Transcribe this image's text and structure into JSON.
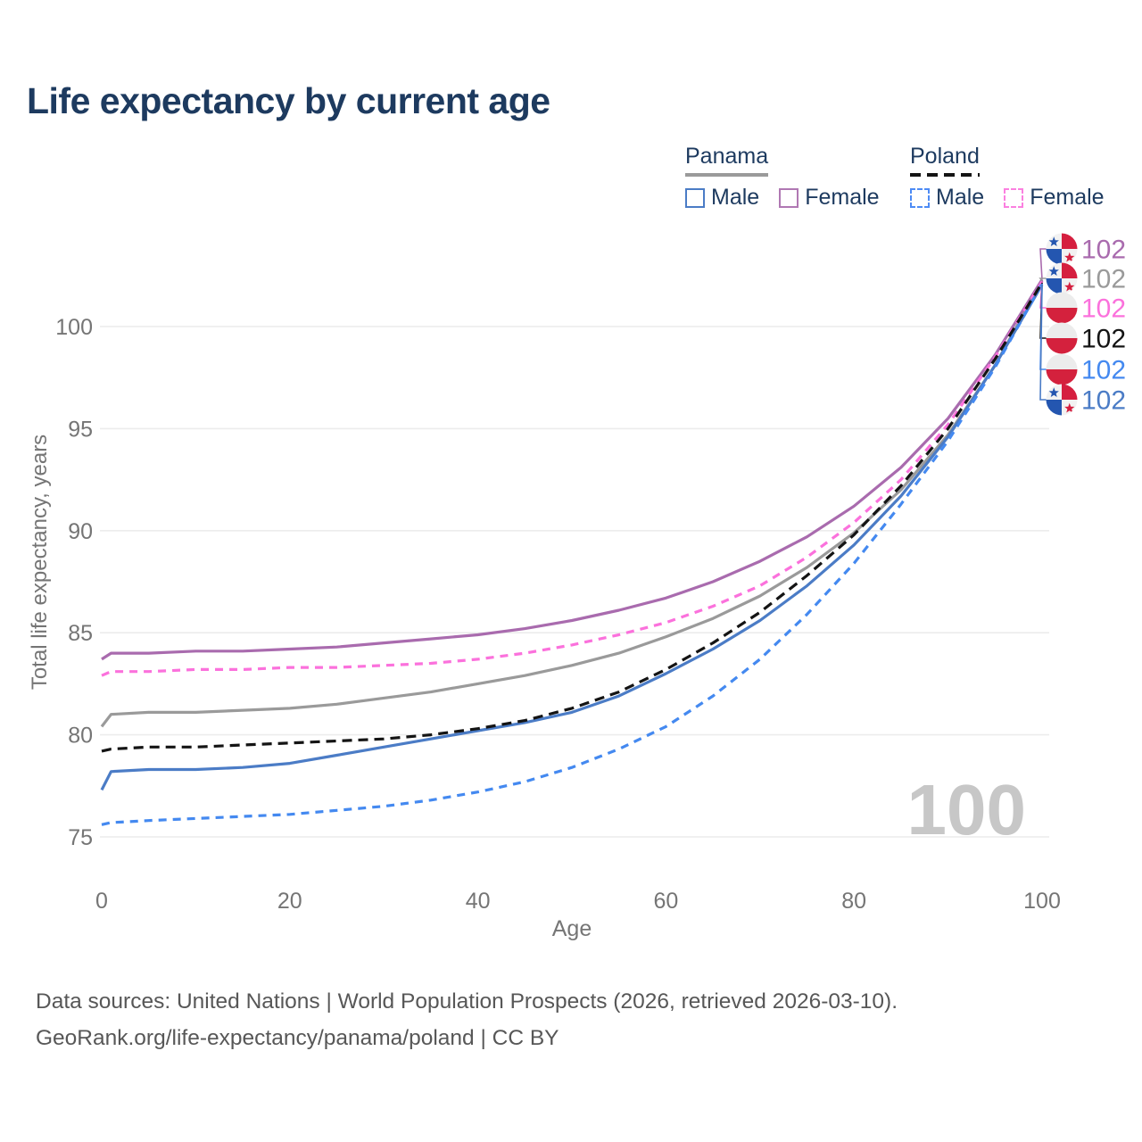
{
  "page": {
    "title": "Life expectancy by current age"
  },
  "legend": {
    "groups": [
      {
        "label": "Panama",
        "line_style": "solid",
        "line_color": "#9a9a9a",
        "items": [
          {
            "label": "Male",
            "style": "solid",
            "color": "#4b7cc6"
          },
          {
            "label": "Female",
            "style": "solid",
            "color": "#b078b3"
          }
        ]
      },
      {
        "label": "Poland",
        "line_style": "dashed",
        "line_color": "#141414",
        "items": [
          {
            "label": "Male",
            "style": "dashed",
            "color": "#4d8bf5"
          },
          {
            "label": "Female",
            "style": "dashed",
            "color": "#fb80e0"
          }
        ]
      }
    ]
  },
  "chart_data": {
    "type": "line",
    "title": "Life expectancy by current age",
    "xlabel": "Age",
    "ylabel": "Total life expectancy, years",
    "x_ticks": [
      0,
      20,
      40,
      60,
      80,
      100
    ],
    "y_ticks": [
      75,
      80,
      85,
      90,
      95,
      100
    ],
    "xlim": [
      0,
      100
    ],
    "ylim": [
      74.5,
      103
    ],
    "grid": "horizontal",
    "legend_position": "top-right",
    "watermark": "100",
    "x": [
      0,
      1,
      5,
      10,
      15,
      20,
      25,
      30,
      35,
      40,
      45,
      50,
      55,
      60,
      65,
      70,
      75,
      80,
      85,
      90,
      95,
      100
    ],
    "series": [
      {
        "name": "Panama Female",
        "country": "panama",
        "sex": "female",
        "color": "#a96bae",
        "dash": "solid",
        "end_label": "102",
        "values": [
          83.7,
          84.0,
          84.0,
          84.1,
          84.1,
          84.2,
          84.3,
          84.5,
          84.7,
          84.9,
          85.2,
          85.6,
          86.1,
          86.7,
          87.5,
          88.5,
          89.7,
          91.2,
          93.1,
          95.5,
          98.6,
          102.3
        ]
      },
      {
        "name": "Panama (both sexes)",
        "country": "panama",
        "sex": "both",
        "color": "#9a9a9a",
        "dash": "solid",
        "end_label": "102",
        "values": [
          80.4,
          81.0,
          81.1,
          81.1,
          81.2,
          81.3,
          81.5,
          81.8,
          82.1,
          82.5,
          82.9,
          83.4,
          84.0,
          84.8,
          85.7,
          86.8,
          88.2,
          89.9,
          92.0,
          94.7,
          98.1,
          102.25
        ]
      },
      {
        "name": "Poland Female",
        "country": "poland",
        "sex": "female",
        "color": "#fb71dc",
        "dash": "dashed",
        "end_label": "102",
        "values": [
          82.9,
          83.1,
          83.1,
          83.2,
          83.2,
          83.3,
          83.3,
          83.4,
          83.5,
          83.7,
          84.0,
          84.4,
          84.9,
          85.5,
          86.3,
          87.3,
          88.7,
          90.4,
          92.5,
          95.2,
          98.5,
          102.2
        ]
      },
      {
        "name": "Poland (both sexes)",
        "country": "poland",
        "sex": "both",
        "color": "#141414",
        "dash": "dashed",
        "end_label": "102",
        "values": [
          79.2,
          79.3,
          79.4,
          79.4,
          79.5,
          79.6,
          79.7,
          79.8,
          80.0,
          80.3,
          80.7,
          81.3,
          82.1,
          83.2,
          84.5,
          86.0,
          87.8,
          89.8,
          92.2,
          95.0,
          98.4,
          102.15
        ]
      },
      {
        "name": "Poland Male",
        "country": "poland",
        "sex": "male",
        "color": "#4489f0",
        "dash": "dashed",
        "end_label": "102",
        "values": [
          75.6,
          75.7,
          75.8,
          75.9,
          76.0,
          76.1,
          76.3,
          76.5,
          76.8,
          77.2,
          77.7,
          78.4,
          79.3,
          80.4,
          81.9,
          83.7,
          85.9,
          88.4,
          91.3,
          94.4,
          98.0,
          102.1
        ]
      },
      {
        "name": "Panama Male",
        "country": "panama",
        "sex": "male",
        "color": "#4b7cc6",
        "dash": "solid",
        "end_label": "102",
        "values": [
          77.3,
          78.2,
          78.3,
          78.3,
          78.4,
          78.6,
          79.0,
          79.4,
          79.8,
          80.2,
          80.6,
          81.1,
          81.9,
          83.0,
          84.2,
          85.6,
          87.3,
          89.3,
          91.7,
          94.6,
          98.1,
          102.05
        ]
      }
    ]
  },
  "flags": {
    "panama": {
      "blue": "#2456b0",
      "red": "#d51f3f",
      "white": "#f2f2f2"
    },
    "poland": {
      "red": "#d4213d",
      "white": "#ececec"
    }
  },
  "footer": {
    "line1": "Data sources: United Nations | World Population Prospects (2026, retrieved 2026-03-10).",
    "line2": "GeoRank.org/life-expectancy/panama/poland | CC BY"
  }
}
